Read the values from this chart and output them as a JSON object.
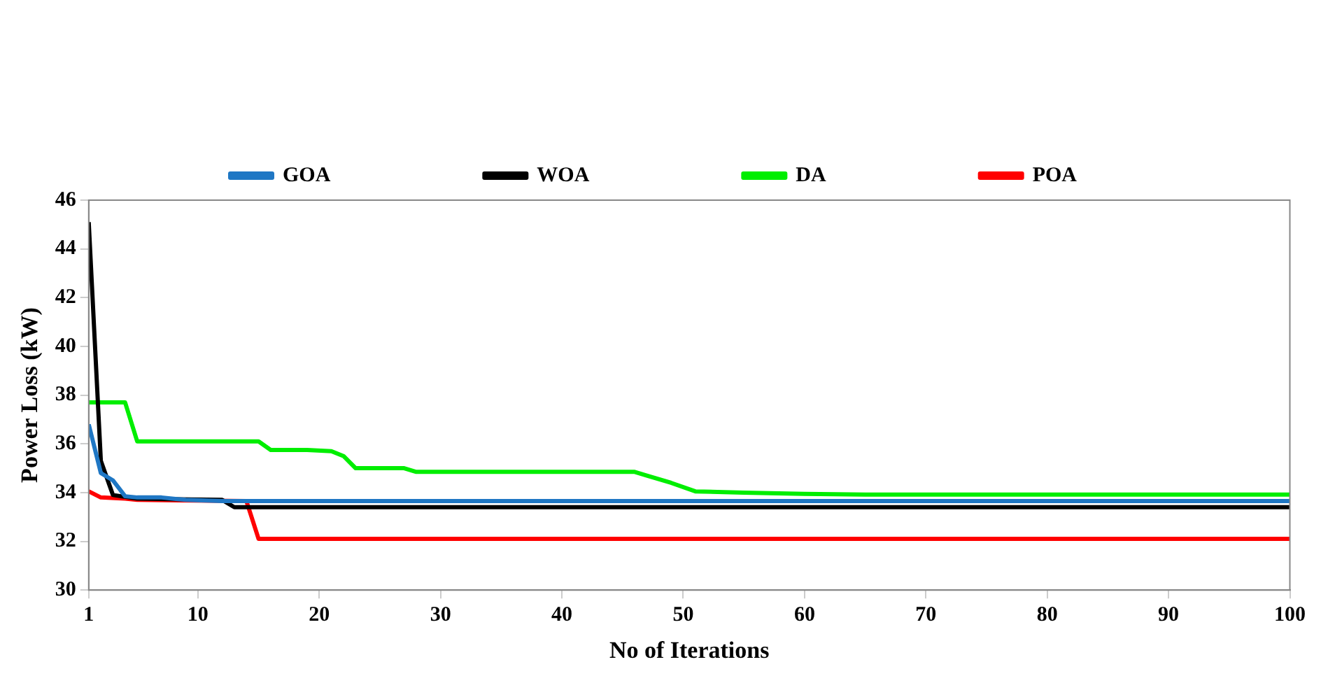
{
  "chart_data": {
    "type": "line",
    "xlabel": "No of Iterations",
    "ylabel": "Power Loss (kW)",
    "xlim": [
      1,
      100
    ],
    "xticks": [
      1,
      10,
      20,
      30,
      40,
      50,
      60,
      70,
      80,
      90,
      100
    ],
    "ylim": [
      30,
      46
    ],
    "yticks": [
      30,
      32,
      34,
      36,
      38,
      40,
      42,
      44,
      46
    ],
    "grid": false,
    "legend": "top",
    "marker": "none",
    "line_style": "solid",
    "series": [
      {
        "name": "GOA",
        "color": "#1f77c4",
        "x": [
          1,
          2,
          3,
          4,
          5,
          7,
          9,
          12,
          100
        ],
        "values": [
          36.8,
          34.8,
          34.5,
          33.85,
          33.8,
          33.8,
          33.7,
          33.65,
          33.65
        ]
      },
      {
        "name": "WOA",
        "color": "#000000",
        "x": [
          1,
          2,
          3,
          5,
          12,
          13,
          100
        ],
        "values": [
          45.1,
          35.3,
          33.9,
          33.75,
          33.7,
          33.4,
          33.4
        ]
      },
      {
        "name": "DA",
        "color": "#00ee00",
        "x": [
          1,
          4,
          5,
          15,
          16,
          19,
          21,
          22,
          23,
          27,
          28,
          46,
          47,
          49,
          51,
          55,
          60,
          65,
          100
        ],
        "values": [
          37.7,
          37.7,
          36.1,
          36.1,
          35.75,
          35.75,
          35.7,
          35.5,
          35.0,
          35.0,
          34.85,
          34.85,
          34.7,
          34.4,
          34.05,
          34.0,
          33.95,
          33.92,
          33.92
        ]
      },
      {
        "name": "POA",
        "color": "#ff0000",
        "x": [
          1,
          2,
          4,
          5,
          14,
          15,
          100
        ],
        "values": [
          34.05,
          33.8,
          33.75,
          33.7,
          33.65,
          32.1,
          32.1
        ]
      }
    ]
  }
}
